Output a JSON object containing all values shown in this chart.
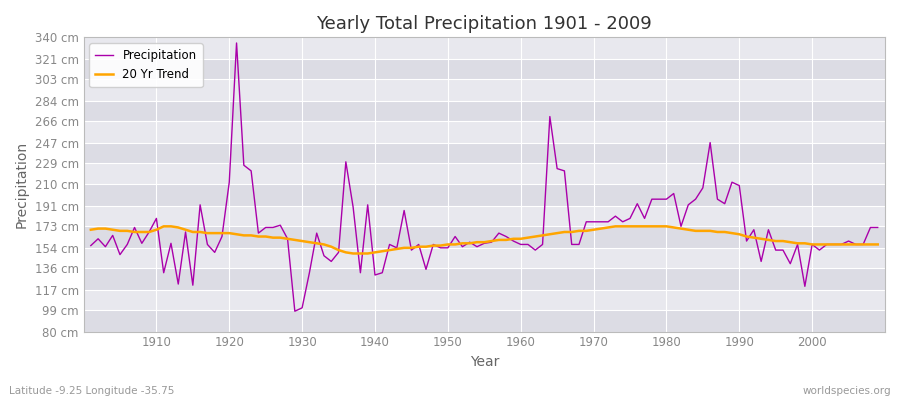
{
  "title": "Yearly Total Precipitation 1901 - 2009",
  "xlabel": "Year",
  "ylabel": "Precipitation",
  "bottom_left_label": "Latitude -9.25 Longitude -35.75",
  "bottom_right_label": "worldspecies.org",
  "legend_entries": [
    "Precipitation",
    "20 Yr Trend"
  ],
  "precip_color": "#AA00AA",
  "trend_color": "#FFA500",
  "background_color": "#FFFFFF",
  "plot_bg_color": "#E8E8EE",
  "grid_color": "#FFFFFF",
  "ylim": [
    80,
    340
  ],
  "yticks": [
    80,
    99,
    117,
    136,
    154,
    173,
    191,
    210,
    229,
    247,
    266,
    284,
    303,
    321,
    340
  ],
  "ytick_labels": [
    "80 cm",
    "99 cm",
    "117 cm",
    "136 cm",
    "154 cm",
    "173 cm",
    "191 cm",
    "210 cm",
    "229 cm",
    "247 cm",
    "266 cm",
    "284 cm",
    "303 cm",
    "321 cm",
    "340 cm"
  ],
  "xticks": [
    1910,
    1920,
    1930,
    1940,
    1950,
    1960,
    1970,
    1980,
    1990,
    2000
  ],
  "years": [
    1901,
    1902,
    1903,
    1904,
    1905,
    1906,
    1907,
    1908,
    1909,
    1910,
    1911,
    1912,
    1913,
    1914,
    1915,
    1916,
    1917,
    1918,
    1919,
    1920,
    1921,
    1922,
    1923,
    1924,
    1925,
    1926,
    1927,
    1928,
    1929,
    1930,
    1931,
    1932,
    1933,
    1934,
    1935,
    1936,
    1937,
    1938,
    1939,
    1940,
    1941,
    1942,
    1943,
    1944,
    1945,
    1946,
    1947,
    1948,
    1949,
    1950,
    1951,
    1952,
    1953,
    1954,
    1955,
    1956,
    1957,
    1958,
    1959,
    1960,
    1961,
    1962,
    1963,
    1964,
    1965,
    1966,
    1967,
    1968,
    1969,
    1970,
    1971,
    1972,
    1973,
    1974,
    1975,
    1976,
    1977,
    1978,
    1979,
    1980,
    1981,
    1982,
    1983,
    1984,
    1985,
    1986,
    1987,
    1988,
    1989,
    1990,
    1991,
    1992,
    1993,
    1994,
    1995,
    1996,
    1997,
    1998,
    1999,
    2000,
    2001,
    2002,
    2003,
    2004,
    2005,
    2006,
    2007,
    2008,
    2009
  ],
  "precip": [
    156,
    162,
    155,
    165,
    148,
    157,
    172,
    158,
    168,
    180,
    132,
    158,
    122,
    168,
    121,
    192,
    157,
    150,
    164,
    212,
    335,
    227,
    222,
    167,
    172,
    172,
    174,
    162,
    98,
    101,
    132,
    167,
    147,
    142,
    150,
    230,
    190,
    132,
    192,
    130,
    132,
    157,
    154,
    187,
    152,
    157,
    135,
    157,
    154,
    154,
    164,
    155,
    159,
    155,
    158,
    159,
    167,
    164,
    160,
    157,
    157,
    152,
    157,
    270,
    224,
    222,
    157,
    157,
    177,
    177,
    177,
    177,
    182,
    177,
    180,
    193,
    180,
    197,
    197,
    197,
    202,
    173,
    192,
    197,
    207,
    247,
    197,
    193,
    212,
    209,
    160,
    170,
    142,
    170,
    152,
    152,
    140,
    157,
    120,
    157,
    152,
    157,
    157,
    157,
    160,
    157,
    157,
    172,
    172
  ],
  "trend": [
    170,
    171,
    171,
    170,
    169,
    169,
    168,
    168,
    168,
    170,
    173,
    173,
    172,
    170,
    168,
    168,
    167,
    167,
    167,
    167,
    166,
    165,
    165,
    164,
    164,
    163,
    163,
    162,
    161,
    160,
    159,
    158,
    157,
    155,
    152,
    150,
    149,
    149,
    149,
    150,
    151,
    152,
    153,
    154,
    154,
    155,
    155,
    156,
    156,
    157,
    157,
    158,
    158,
    159,
    159,
    160,
    161,
    161,
    162,
    162,
    163,
    164,
    165,
    166,
    167,
    168,
    168,
    169,
    169,
    170,
    171,
    172,
    173,
    173,
    173,
    173,
    173,
    173,
    173,
    173,
    172,
    171,
    170,
    169,
    169,
    169,
    168,
    168,
    167,
    166,
    164,
    163,
    162,
    161,
    160,
    160,
    159,
    158,
    158,
    157,
    157,
    157,
    157,
    157,
    157,
    157,
    157,
    157,
    157
  ]
}
